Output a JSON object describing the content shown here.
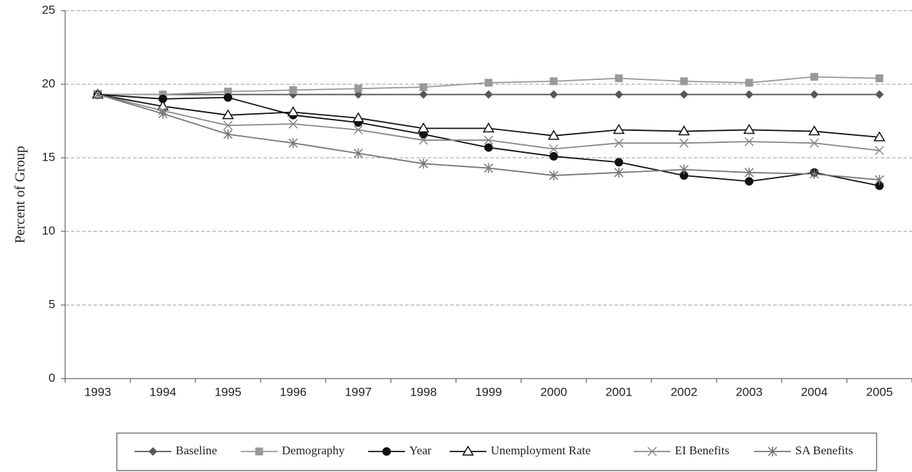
{
  "chart_data": {
    "type": "line",
    "y_label": "Percent of Group",
    "categories": [
      "1993",
      "1994",
      "1995",
      "1996",
      "1997",
      "1998",
      "1999",
      "2000",
      "2001",
      "2002",
      "2003",
      "2004",
      "2005"
    ],
    "ylim": [
      0,
      25
    ],
    "yticks": [
      0,
      5,
      10,
      15,
      20,
      25
    ],
    "grid": true,
    "legend": "bottom",
    "series": [
      {
        "name": "Baseline",
        "color": "#555555",
        "marker": "diamond",
        "values": [
          19.3,
          19.3,
          19.3,
          19.3,
          19.3,
          19.3,
          19.3,
          19.3,
          19.3,
          19.3,
          19.3,
          19.3,
          19.3
        ]
      },
      {
        "name": "Demography",
        "color": "#999999",
        "marker": "square",
        "values": [
          19.3,
          19.3,
          19.5,
          19.6,
          19.7,
          19.8,
          20.1,
          20.2,
          20.4,
          20.2,
          20.1,
          20.5,
          20.4
        ]
      },
      {
        "name": "Year",
        "color": "#111111",
        "marker": "circle",
        "values": [
          19.3,
          19.0,
          19.1,
          17.9,
          17.4,
          16.6,
          15.7,
          15.1,
          14.7,
          13.8,
          13.4,
          14.0,
          13.1
        ]
      },
      {
        "name": "Unemployment Rate",
        "color": "#111111",
        "marker": "triangle",
        "values": [
          19.3,
          18.5,
          17.9,
          18.1,
          17.7,
          17.0,
          17.0,
          16.5,
          16.9,
          16.8,
          16.9,
          16.8,
          16.4
        ]
      },
      {
        "name": "EI Benefits",
        "color": "#888888",
        "marker": "x",
        "values": [
          19.3,
          18.2,
          17.2,
          17.3,
          16.9,
          16.2,
          16.2,
          15.6,
          16.0,
          16.0,
          16.1,
          16.0,
          15.5
        ]
      },
      {
        "name": "SA Benefits",
        "color": "#777777",
        "marker": "star",
        "values": [
          19.3,
          18.0,
          16.6,
          16.0,
          15.3,
          14.6,
          14.3,
          13.8,
          14.0,
          14.2,
          14.0,
          13.9,
          13.5
        ]
      }
    ]
  }
}
